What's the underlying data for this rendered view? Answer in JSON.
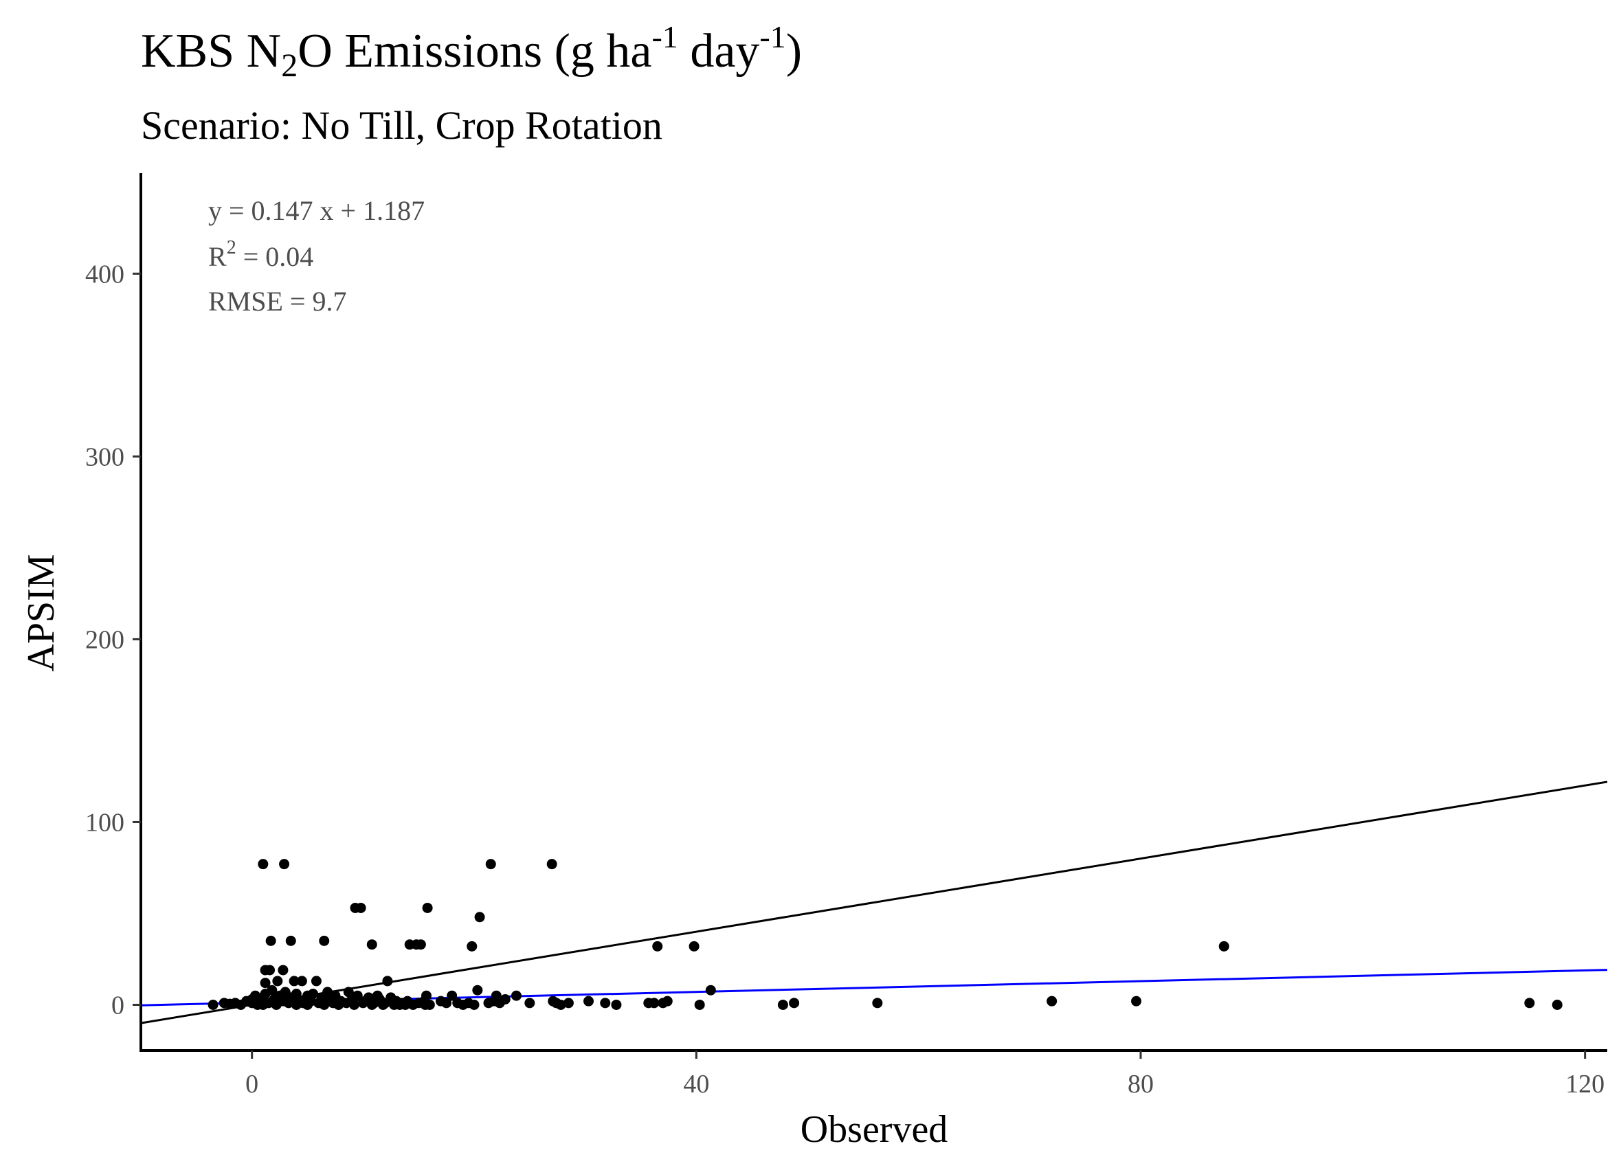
{
  "chart_data": {
    "type": "scatter",
    "title": {
      "part1": "KBS N",
      "sub": "2",
      "part2": "O Emissions (g ha",
      "sup1": "-1",
      "part3": " day",
      "sup2": "-1",
      "part4": ")"
    },
    "subtitle": "Scenario: No Till, Crop Rotation",
    "xlabel": "Observed",
    "ylabel": "APSIM",
    "xlim": [
      -10,
      122
    ],
    "ylim": [
      -25,
      455
    ],
    "x_ticks": [
      0,
      40,
      80,
      120
    ],
    "y_ticks": [
      0,
      100,
      200,
      300,
      400
    ],
    "annotations": {
      "equation": "y = 0.147 x +  1.187",
      "r2_prefix": "R",
      "r2_sup": "2",
      "r2_value": " = 0.04",
      "rmse": "RMSE = 9.7"
    },
    "lines": [
      {
        "kind": "one-to-one",
        "slope": 1,
        "intercept": 0,
        "color": "#000000"
      },
      {
        "kind": "regression",
        "slope": 0.147,
        "intercept": 1.187,
        "color": "#0000ff"
      }
    ],
    "points": [
      [
        -3.5,
        0
      ],
      [
        -2.5,
        1
      ],
      [
        -2,
        0.5
      ],
      [
        -1.5,
        1
      ],
      [
        -1,
        0
      ],
      [
        -0.5,
        2
      ],
      [
        0,
        1
      ],
      [
        0,
        3
      ],
      [
        0.3,
        5
      ],
      [
        0.5,
        0
      ],
      [
        0.7,
        2
      ],
      [
        1,
        0
      ],
      [
        1,
        4
      ],
      [
        1.2,
        6
      ],
      [
        1.2,
        12
      ],
      [
        1.2,
        19
      ],
      [
        1.5,
        1
      ],
      [
        1.6,
        19
      ],
      [
        1.7,
        35
      ],
      [
        1.8,
        8
      ],
      [
        2,
        3
      ],
      [
        2.2,
        0
      ],
      [
        2.3,
        13
      ],
      [
        2.5,
        5
      ],
      [
        2.8,
        19
      ],
      [
        2.8,
        2
      ],
      [
        3,
        7
      ],
      [
        3.3,
        1
      ],
      [
        3.5,
        4
      ],
      [
        3.5,
        35
      ],
      [
        3.8,
        13
      ],
      [
        4,
        0
      ],
      [
        4,
        6
      ],
      [
        4.2,
        2
      ],
      [
        4.5,
        13
      ],
      [
        4.6,
        1
      ],
      [
        4.8,
        3
      ],
      [
        5,
        0
      ],
      [
        5,
        5
      ],
      [
        5.3,
        2
      ],
      [
        5.5,
        6
      ],
      [
        5.8,
        13
      ],
      [
        6,
        1
      ],
      [
        6.3,
        4
      ],
      [
        6.5,
        0
      ],
      [
        6.5,
        35
      ],
      [
        6.8,
        7
      ],
      [
        7,
        3
      ],
      [
        7.3,
        1
      ],
      [
        7.5,
        5
      ],
      [
        7.8,
        0
      ],
      [
        8,
        2
      ],
      [
        8.5,
        1
      ],
      [
        8.7,
        7
      ],
      [
        9,
        3
      ],
      [
        9.2,
        0
      ],
      [
        9.3,
        53
      ],
      [
        9.5,
        5
      ],
      [
        9.8,
        53
      ],
      [
        10,
        1
      ],
      [
        10.2,
        2
      ],
      [
        10.5,
        4
      ],
      [
        10.8,
        0
      ],
      [
        10.8,
        33
      ],
      [
        11,
        1
      ],
      [
        11.3,
        5
      ],
      [
        11.5,
        3
      ],
      [
        11.8,
        0
      ],
      [
        12,
        1
      ],
      [
        12.2,
        13
      ],
      [
        12.5,
        4
      ],
      [
        12.8,
        0
      ],
      [
        13,
        2
      ],
      [
        13.3,
        0
      ],
      [
        13.5,
        1
      ],
      [
        13.8,
        0
      ],
      [
        14,
        2
      ],
      [
        14.2,
        33
      ],
      [
        14.5,
        0
      ],
      [
        14.8,
        33
      ],
      [
        15,
        1
      ],
      [
        15.2,
        33
      ],
      [
        15.5,
        2
      ],
      [
        15.6,
        0
      ],
      [
        15.7,
        5
      ],
      [
        15.8,
        53
      ],
      [
        16,
        0
      ],
      [
        17,
        2
      ],
      [
        17.5,
        1
      ],
      [
        18,
        5
      ],
      [
        18.5,
        1
      ],
      [
        19,
        0
      ],
      [
        19.5,
        1
      ],
      [
        19.8,
        32
      ],
      [
        20,
        0
      ],
      [
        20.3,
        8
      ],
      [
        20.5,
        48
      ],
      [
        21.3,
        1
      ],
      [
        21.5,
        77
      ],
      [
        21.8,
        2
      ],
      [
        22,
        5
      ],
      [
        22.3,
        1
      ],
      [
        22.8,
        3
      ],
      [
        23.8,
        5
      ],
      [
        25,
        1
      ],
      [
        27,
        77
      ],
      [
        27.1,
        2
      ],
      [
        27.4,
        1
      ],
      [
        27.8,
        0
      ],
      [
        28.5,
        1
      ],
      [
        30.3,
        2
      ],
      [
        31.8,
        1
      ],
      [
        32.8,
        0
      ],
      [
        35.7,
        1
      ],
      [
        36.2,
        1
      ],
      [
        36.5,
        32
      ],
      [
        37,
        1
      ],
      [
        37.4,
        2
      ],
      [
        39.8,
        32
      ],
      [
        40.3,
        0
      ],
      [
        41.3,
        8
      ],
      [
        47.8,
        0
      ],
      [
        48.8,
        1
      ],
      [
        56.3,
        1
      ],
      [
        72,
        2
      ],
      [
        79.6,
        2
      ],
      [
        87.5,
        32
      ],
      [
        115,
        1
      ],
      [
        117.5,
        0
      ],
      [
        1,
        77
      ],
      [
        2.9,
        77
      ]
    ]
  }
}
